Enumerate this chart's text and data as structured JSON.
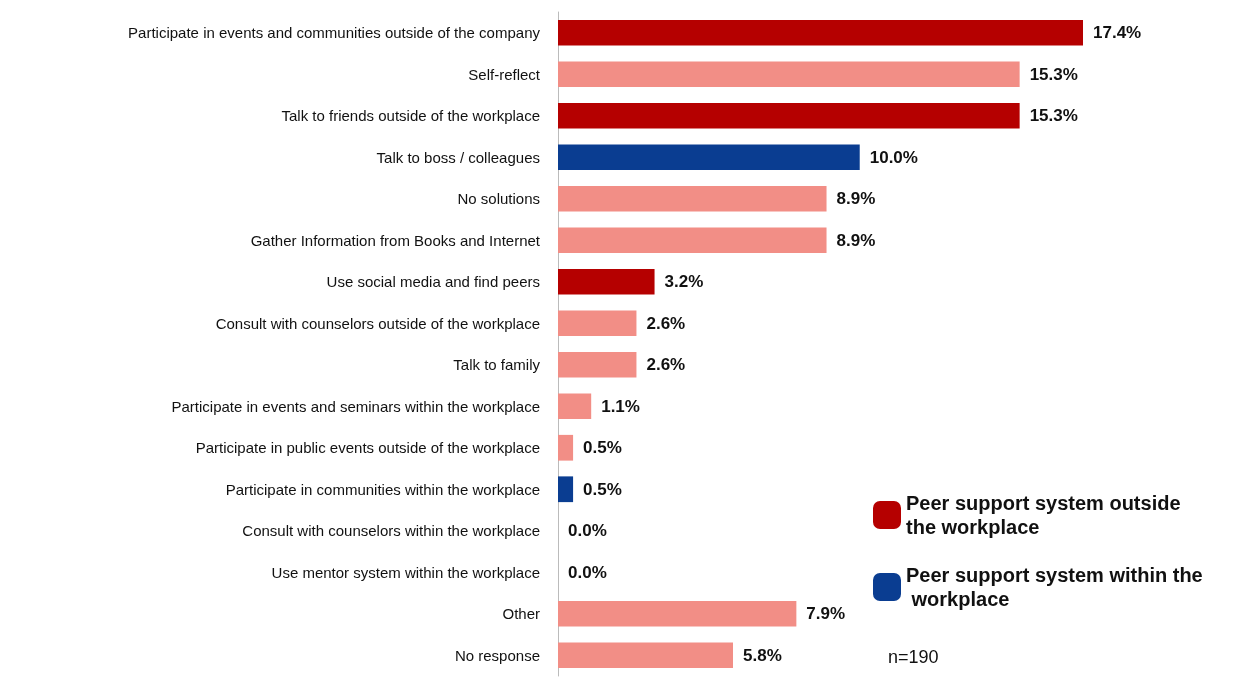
{
  "chart_data": {
    "type": "bar",
    "orientation": "horizontal",
    "stacked": true,
    "legend": "bottom right",
    "categories": [
      "Participate in events and communities outside of the company",
      "Self-reflect",
      "Talk to friends outside of the workplace",
      "Talk to boss / colleagues",
      "No solutions",
      "Gather Information from Books and Internet",
      "Use social media and find peers",
      "Consult with counselors outside of the workplace",
      "Talk to family",
      "Participate in events and seminars within the workplace",
      "Participate in public events outside of the workplace",
      "Participate in communities within the workplace",
      "Consult with counselors within the workplace",
      "Use mentor system within the workplace",
      "Other",
      "No response"
    ],
    "series": [
      {
        "name": "Peer support system outside the workplace",
        "color": "#b50000",
        "values": [
          17.4,
          null,
          15.3,
          null,
          null,
          null,
          3.2,
          null,
          null,
          null,
          null,
          null,
          null,
          null,
          null,
          null
        ],
        "value_labels": [
          "17.4%",
          null,
          "15.3%",
          null,
          null,
          null,
          "3.2%",
          null,
          null,
          null,
          null,
          null,
          null,
          null,
          null,
          null
        ]
      },
      {
        "name": "Peer support system within the workplace",
        "color": "#0a3d91",
        "values": [
          null,
          null,
          null,
          10.0,
          null,
          null,
          null,
          null,
          null,
          null,
          null,
          0.5,
          null,
          null,
          null,
          null
        ],
        "value_labels": [
          null,
          null,
          null,
          "10.0%",
          null,
          null,
          null,
          null,
          null,
          null,
          null,
          "0.5%",
          null,
          null,
          null,
          null
        ]
      },
      {
        "color": "#f28e86",
        "values": [
          null,
          15.3,
          null,
          null,
          8.9,
          8.9,
          null,
          2.6,
          2.6,
          1.1,
          0.5,
          null,
          0.0,
          0.0,
          7.9,
          5.8
        ],
        "value_labels": [
          null,
          "15.3%",
          null,
          null,
          "8.9%",
          "8.9%",
          null,
          "2.6%",
          "2.6%",
          "1.1%",
          "0.5%",
          null,
          "0.0%",
          "0.0%",
          "7.9%",
          "5.8%"
        ]
      }
    ],
    "annotations": [
      "n=190"
    ]
  }
}
